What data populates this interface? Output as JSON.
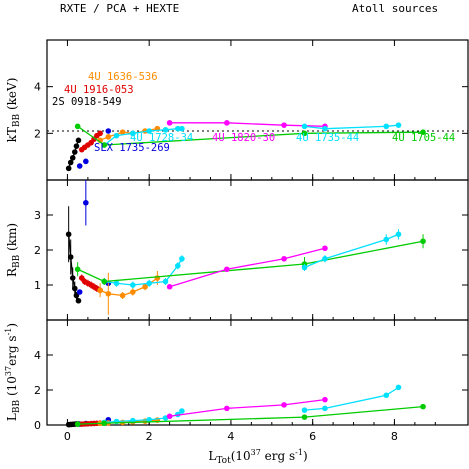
{
  "header": {
    "left": "RXTE / PCA + HEXTE",
    "right": "Atoll sources"
  },
  "axes": {
    "xlabel_main": "L",
    "xlabel_sub": "Tot",
    "xlabel_units": "(10",
    "xlabel_exp": "37",
    "xlabel_tail": " erg s",
    "xlabel_exp2": "-1",
    "xlabel_close": ")",
    "panel1_ylabel": "kT",
    "panel1_ylabel_sub": "BB",
    "panel1_ylabel_units": " (keV)",
    "panel2_ylabel": "R",
    "panel2_ylabel_sub": "BB",
    "panel2_ylabel_units": " (km)",
    "panel3_ylabel": "L",
    "panel3_ylabel_sub": "BB",
    "panel3_ylabel_units": " (10",
    "panel3_ylabel_exp": "37",
    "panel3_ylabel_tail": "erg s",
    "panel3_ylabel_exp2": "-1",
    "panel3_ylabel_close": ")"
  },
  "source_labels": [
    {
      "text": "4U 1636-536",
      "color": "#ff8c00"
    },
    {
      "text": "4U 1916-053",
      "color": "#e00000"
    },
    {
      "text": "2S 0918-549",
      "color": "#000000"
    },
    {
      "text": "4U 1728-34",
      "color": "#00e0ff"
    },
    {
      "text": "SLX 1735-269",
      "color": "#0000e0"
    },
    {
      "text": "4U 1820-30",
      "color": "#ff00ff"
    },
    {
      "text": "4U 1735-44",
      "color": "#00e0ff"
    },
    {
      "text": "4U 1705-44",
      "color": "#00cc00"
    }
  ],
  "chart_data": {
    "type": "scatter",
    "xlim": [
      -0.5,
      9.8
    ],
    "x_ticks": [
      0,
      2,
      4,
      6,
      8
    ],
    "panels": [
      {
        "name": "kT_BB",
        "ylim": [
          0,
          6
        ],
        "y_ticks": [
          2,
          4
        ],
        "reference_line": 2.1
      },
      {
        "name": "R_BB",
        "ylim": [
          0,
          4
        ],
        "y_ticks": [
          1,
          2,
          3
        ]
      },
      {
        "name": "L_BB",
        "ylim": [
          0,
          6
        ],
        "y_ticks": [
          0,
          2,
          4
        ]
      }
    ],
    "series": [
      {
        "name": "2S 0918-549",
        "color": "#000000",
        "connected": true,
        "x": [
          0.03,
          0.08,
          0.13,
          0.18,
          0.22,
          0.27
        ],
        "kT": [
          0.5,
          0.75,
          0.95,
          1.2,
          1.45,
          1.7
        ],
        "R": [
          2.45,
          1.8,
          1.2,
          0.9,
          0.7,
          0.55
        ],
        "R_err": [
          0.8,
          0.5,
          0.3,
          0.2,
          0.1,
          0.05
        ],
        "L": [
          0.02,
          0.03,
          0.04,
          0.05,
          0.06,
          0.06
        ]
      },
      {
        "name": "SLX 1735-269",
        "color": "#0000e0",
        "connected": false,
        "x": [
          0.3,
          0.45,
          1.0
        ],
        "kT": [
          0.6,
          0.8,
          2.1
        ],
        "R": [
          0.8,
          3.35,
          1.05
        ],
        "R_err": [
          0.0,
          0.65,
          0.05
        ],
        "L": [
          0.05,
          0.08,
          0.3
        ]
      },
      {
        "name": "4U 1916-053",
        "color": "#e00000",
        "connected": true,
        "x": [
          0.35,
          0.42,
          0.5,
          0.58,
          0.65,
          0.72,
          0.8
        ],
        "kT": [
          1.3,
          1.4,
          1.5,
          1.6,
          1.75,
          1.9,
          2.0
        ],
        "R": [
          1.2,
          1.1,
          1.05,
          1.0,
          0.95,
          0.9,
          0.85
        ],
        "R_err": [
          0.1,
          0.1,
          0.1,
          0.1,
          0.1,
          0.1,
          0.1
        ],
        "L": [
          0.05,
          0.06,
          0.07,
          0.08,
          0.09,
          0.1,
          0.11
        ]
      },
      {
        "name": "4U 1636-536",
        "color": "#ff8c00",
        "connected": true,
        "x": [
          0.8,
          1.0,
          1.35,
          1.6,
          1.9,
          2.2
        ],
        "kT": [
          1.7,
          1.85,
          2.05,
          2.0,
          2.1,
          2.2
        ],
        "R": [
          0.85,
          0.75,
          0.7,
          0.8,
          0.95,
          1.2
        ],
        "R_err": [
          0.2,
          0.6,
          0.1,
          0.1,
          0.1,
          0.2
        ],
        "L": [
          0.1,
          0.12,
          0.15,
          0.18,
          0.22,
          0.28
        ]
      },
      {
        "name": "4U 1728-34",
        "color": "#00e0ff",
        "connected": true,
        "x": [
          0.9,
          1.2,
          1.6,
          2.0,
          2.4,
          2.7,
          2.8
        ],
        "kT": [
          1.5,
          1.9,
          2.0,
          2.1,
          2.15,
          2.2,
          2.2
        ],
        "R": [
          1.1,
          1.05,
          1.0,
          1.05,
          1.1,
          1.55,
          1.75
        ],
        "R_err": [
          0.1,
          0.1,
          0.1,
          0.1,
          0.1,
          0.1,
          0.1
        ],
        "L": [
          0.15,
          0.2,
          0.25,
          0.3,
          0.4,
          0.6,
          0.8
        ]
      },
      {
        "name": "4U 1705-44",
        "color": "#00cc00",
        "connected": true,
        "x": [
          0.25,
          0.9,
          5.8,
          8.7
        ],
        "kT": [
          2.3,
          1.5,
          2.0,
          2.05
        ],
        "R": [
          1.45,
          1.1,
          1.6,
          2.25
        ],
        "R_err": [
          0.2,
          0.1,
          0.2,
          0.2
        ],
        "L": [
          0.05,
          0.1,
          0.45,
          1.05
        ]
      },
      {
        "name": "4U 1820-30",
        "color": "#ff00ff",
        "connected": true,
        "x": [
          2.5,
          3.9,
          5.3,
          6.3
        ],
        "kT": [
          2.45,
          2.45,
          2.35,
          2.3
        ],
        "R": [
          0.95,
          1.45,
          1.75,
          2.05
        ],
        "R_err": [
          0.05,
          0.05,
          0.05,
          0.05
        ],
        "L": [
          0.5,
          0.95,
          1.15,
          1.45
        ]
      },
      {
        "name": "4U 1735-44",
        "color": "#00e0ff",
        "connected": true,
        "x": [
          5.8,
          6.3,
          7.8,
          8.1
        ],
        "kT": [
          2.3,
          2.2,
          2.3,
          2.35
        ],
        "R": [
          1.5,
          1.75,
          2.3,
          2.45
        ],
        "R_err": [
          0.1,
          0.1,
          0.15,
          0.15
        ],
        "L": [
          0.85,
          0.95,
          1.7,
          2.15
        ]
      }
    ]
  }
}
